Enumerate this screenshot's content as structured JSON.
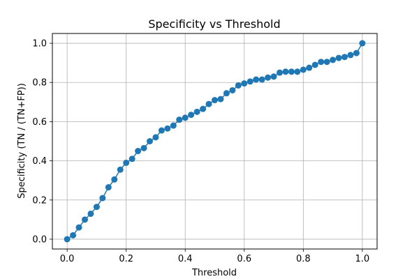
{
  "chart_data": {
    "type": "line",
    "title": "Specificity vs Threshold",
    "xlabel": "Threshold",
    "ylabel": "Specificity (TN / (TN+FP))",
    "xlim": [
      -0.05,
      1.05
    ],
    "ylim": [
      -0.05,
      1.05
    ],
    "xticks": [
      0.0,
      0.2,
      0.4,
      0.6,
      0.8,
      1.0
    ],
    "xtick_labels": [
      "0.0",
      "0.2",
      "0.4",
      "0.6",
      "0.8",
      "1.0"
    ],
    "yticks": [
      0.0,
      0.2,
      0.4,
      0.6,
      0.8,
      1.0
    ],
    "ytick_labels": [
      "0.0",
      "0.2",
      "0.4",
      "0.6",
      "0.8",
      "1.0"
    ],
    "grid": true,
    "legend": "none",
    "markers": true,
    "series": [
      {
        "color": "#1f77b4",
        "x": [
          0.0,
          0.02,
          0.04,
          0.06,
          0.08,
          0.1,
          0.12,
          0.14,
          0.16,
          0.18,
          0.2,
          0.22,
          0.24,
          0.26,
          0.28,
          0.3,
          0.32,
          0.34,
          0.36,
          0.38,
          0.4,
          0.42,
          0.44,
          0.46,
          0.48,
          0.5,
          0.52,
          0.54,
          0.56,
          0.58,
          0.6,
          0.62,
          0.64,
          0.66,
          0.68,
          0.7,
          0.72,
          0.74,
          0.76,
          0.78,
          0.8,
          0.82,
          0.84,
          0.86,
          0.88,
          0.9,
          0.92,
          0.94,
          0.96,
          0.98,
          1.0
        ],
        "y": [
          0.0,
          0.02,
          0.06,
          0.1,
          0.13,
          0.165,
          0.21,
          0.265,
          0.305,
          0.355,
          0.39,
          0.41,
          0.45,
          0.465,
          0.5,
          0.52,
          0.555,
          0.565,
          0.58,
          0.61,
          0.62,
          0.635,
          0.65,
          0.665,
          0.69,
          0.71,
          0.715,
          0.745,
          0.76,
          0.785,
          0.795,
          0.805,
          0.815,
          0.815,
          0.825,
          0.83,
          0.85,
          0.855,
          0.855,
          0.855,
          0.865,
          0.875,
          0.89,
          0.905,
          0.905,
          0.915,
          0.925,
          0.93,
          0.94,
          0.95,
          1.0
        ]
      }
    ]
  }
}
